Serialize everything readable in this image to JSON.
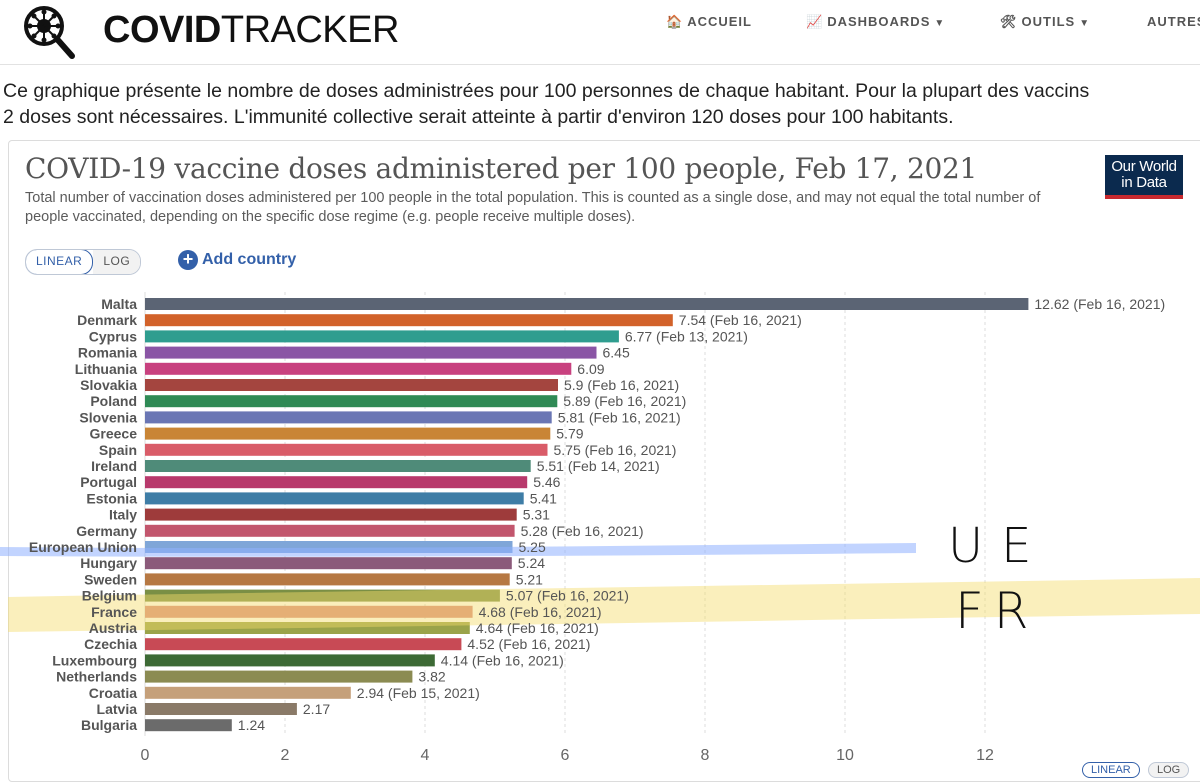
{
  "header": {
    "brand_bold": "COVID",
    "brand_light": "TRACKER",
    "nav": [
      {
        "icon": "🏠",
        "label": "ACCUEIL",
        "caret": false
      },
      {
        "icon": "📈",
        "label": "DASHBOARDS",
        "caret": true
      },
      {
        "icon": "🛠",
        "label": "OUTILS",
        "caret": true
      },
      {
        "icon": "",
        "label": "AUTRES",
        "caret": false
      }
    ]
  },
  "intro": {
    "line1": "Ce graphique présente le nombre de doses administrées pour 100 personnes de chaque habitant. Pour la plupart des vaccins",
    "line2": "2 doses sont nécessaires. L'immunité collective serait atteinte à partir d'environ 120 doses pour 100 habitants."
  },
  "chart_header": {
    "title": "COVID-19 vaccine doses administered per 100 people, Feb 17, 2021",
    "subtitle": "Total number of vaccination doses administered per 100 people in the total population. This is counted as a single dose, and may not equal the total number of people vaccinated, depending on the specific dose regime (e.g. people receive multiple doses).",
    "owid_line1": "Our World",
    "owid_line2": "in Data",
    "toggle_linear": "LINEAR",
    "toggle_log": "LOG",
    "add_country": "Add country",
    "bottom_linear": "LINEAR",
    "bottom_log": "LOG"
  },
  "annotations": {
    "ue": "UE",
    "fr": "FR",
    "ue_highlight_color": "#8fb0ff",
    "fr_highlight_color": "#f5dc6a"
  },
  "chart_data": {
    "type": "bar",
    "orientation": "horizontal",
    "title": "COVID-19 vaccine doses administered per 100 people, Feb 17, 2021",
    "xlim": [
      0,
      13
    ],
    "x_ticks": [
      0,
      2,
      4,
      6,
      8,
      10,
      12
    ],
    "grid": true,
    "categories": [
      "Malta",
      "Denmark",
      "Cyprus",
      "Romania",
      "Lithuania",
      "Slovakia",
      "Poland",
      "Slovenia",
      "Greece",
      "Spain",
      "Ireland",
      "Portugal",
      "Estonia",
      "Italy",
      "Germany",
      "European Union",
      "Hungary",
      "Sweden",
      "Belgium",
      "France",
      "Austria",
      "Czechia",
      "Luxembourg",
      "Netherlands",
      "Croatia",
      "Latvia",
      "Bulgaria"
    ],
    "values": [
      12.62,
      7.54,
      6.77,
      6.45,
      6.09,
      5.9,
      5.89,
      5.81,
      5.79,
      5.75,
      5.51,
      5.46,
      5.41,
      5.31,
      5.28,
      5.25,
      5.24,
      5.21,
      5.07,
      4.68,
      4.64,
      4.52,
      4.14,
      3.82,
      2.94,
      2.17,
      1.24
    ],
    "labels": [
      "12.62 (Feb 16, 2021)",
      "7.54 (Feb 16, 2021)",
      "6.77 (Feb 13, 2021)",
      "6.45",
      "6.09",
      "5.9 (Feb 16, 2021)",
      "5.89 (Feb 16, 2021)",
      "5.81 (Feb 16, 2021)",
      "5.79",
      "5.75 (Feb 16, 2021)",
      "5.51 (Feb 14, 2021)",
      "5.46",
      "5.41",
      "5.31",
      "5.28 (Feb 16, 2021)",
      "5.25",
      "5.24",
      "5.21",
      "5.07 (Feb 16, 2021)",
      "4.68 (Feb 16, 2021)",
      "4.64 (Feb 16, 2021)",
      "4.52 (Feb 16, 2021)",
      "4.14 (Feb 16, 2021)",
      "3.82",
      "2.94 (Feb 15, 2021)",
      "2.17",
      "1.24"
    ],
    "colors": [
      "#5b6474",
      "#d2622a",
      "#2f9d8f",
      "#8a55a5",
      "#c8417f",
      "#a4453f",
      "#2f8a55",
      "#6a76b4",
      "#c98536",
      "#d95c68",
      "#4f8b79",
      "#b8396c",
      "#3e7da6",
      "#9e3b3b",
      "#c2566d",
      "#7fa6d8",
      "#8b5a7a",
      "#b67843",
      "#7a8f45",
      "#d98a7f",
      "#9aa34a",
      "#c84a55",
      "#3d6a35",
      "#8b8b52",
      "#c5a07a",
      "#8a7a68",
      "#6b6b6b"
    ]
  }
}
